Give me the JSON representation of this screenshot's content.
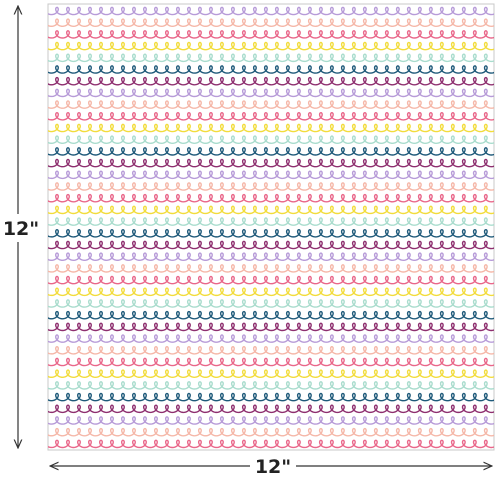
{
  "dimensions": {
    "height_label": "12\"",
    "width_label": "12\""
  }
}
